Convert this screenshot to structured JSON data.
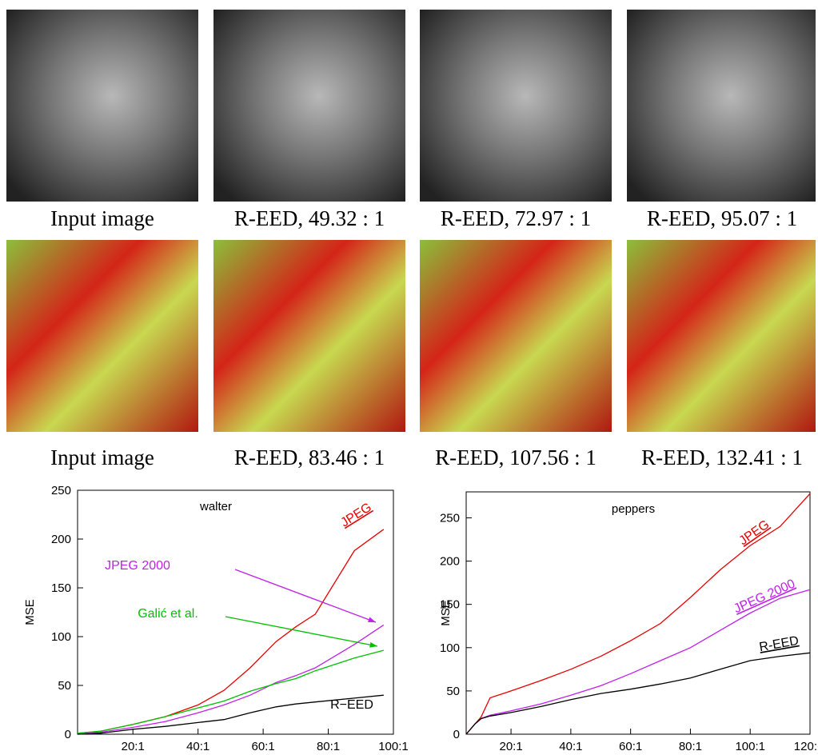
{
  "figure": {
    "rows": [
      {
        "captions": [
          "Input image",
          "R-EED, 49.32 : 1",
          "R-EED, 72.97 : 1",
          "R-EED, 95.07 : 1"
        ]
      },
      {
        "captions": [
          "Input image",
          "R-EED, 83.46 : 1",
          "R-EED, 107.56 : 1",
          "R-EED, 132.41 : 1"
        ]
      }
    ]
  },
  "chart_data": [
    {
      "type": "line",
      "title": "walter",
      "y_label": "MSE",
      "x": [
        3,
        10,
        20,
        30,
        40,
        48,
        56,
        64,
        70,
        76,
        88,
        97
      ],
      "xlim": [
        3,
        100
      ],
      "xticks": [
        {
          "value": 20,
          "label": "20:1"
        },
        {
          "value": 40,
          "label": "40:1"
        },
        {
          "value": 60,
          "label": "60:1"
        },
        {
          "value": 80,
          "label": "80:1"
        },
        {
          "value": 100,
          "label": "100:1"
        }
      ],
      "ylim": [
        0,
        250
      ],
      "yticks": [
        0,
        50,
        100,
        150,
        200,
        250
      ],
      "series": [
        {
          "name": "JPEG",
          "color": "#e80000",
          "values": [
            1,
            3,
            10,
            18,
            30,
            45,
            68,
            95,
            110,
            123,
            188,
            210
          ]
        },
        {
          "name": "JPEG 2000",
          "color": "#c020e8",
          "values": [
            1,
            2,
            7,
            13,
            22,
            30,
            40,
            53,
            60,
            68,
            92,
            112
          ]
        },
        {
          "name": "Galić et al.",
          "color": "#00c000",
          "values": [
            1,
            3,
            10,
            18,
            27,
            34,
            44,
            52,
            57,
            65,
            78,
            86
          ]
        },
        {
          "name": "R−EED",
          "color": "#000000",
          "values": [
            0,
            1,
            5,
            8,
            12,
            15,
            22,
            28,
            31,
            33,
            37,
            40
          ]
        }
      ]
    },
    {
      "type": "line",
      "title": "peppers",
      "y_label": "MSE",
      "x": [
        5,
        8,
        10,
        13,
        20,
        30,
        40,
        50,
        60,
        70,
        80,
        90,
        100,
        110,
        120
      ],
      "xlim": [
        5,
        120
      ],
      "xticks": [
        {
          "value": 20,
          "label": "20:1"
        },
        {
          "value": 40,
          "label": "40:1"
        },
        {
          "value": 60,
          "label": "60:1"
        },
        {
          "value": 80,
          "label": "80:1"
        },
        {
          "value": 100,
          "label": "100:1"
        },
        {
          "value": 120,
          "label": "120:"
        }
      ],
      "ylim": [
        0,
        280
      ],
      "yticks": [
        0,
        50,
        100,
        150,
        200,
        250
      ],
      "series": [
        {
          "name": "JPEG",
          "color": "#e80000",
          "values": [
            0,
            12,
            20,
            42,
            50,
            62,
            75,
            90,
            108,
            128,
            158,
            190,
            218,
            240,
            278
          ]
        },
        {
          "name": "JPEG 2000",
          "color": "#c020e8",
          "values": [
            0,
            12,
            18,
            22,
            27,
            35,
            45,
            56,
            70,
            85,
            100,
            120,
            140,
            157,
            167
          ]
        },
        {
          "name": "R-EED",
          "color": "#000000",
          "values": [
            0,
            12,
            18,
            21,
            25,
            32,
            40,
            47,
            52,
            58,
            65,
            75,
            85,
            90,
            94
          ]
        }
      ]
    }
  ]
}
